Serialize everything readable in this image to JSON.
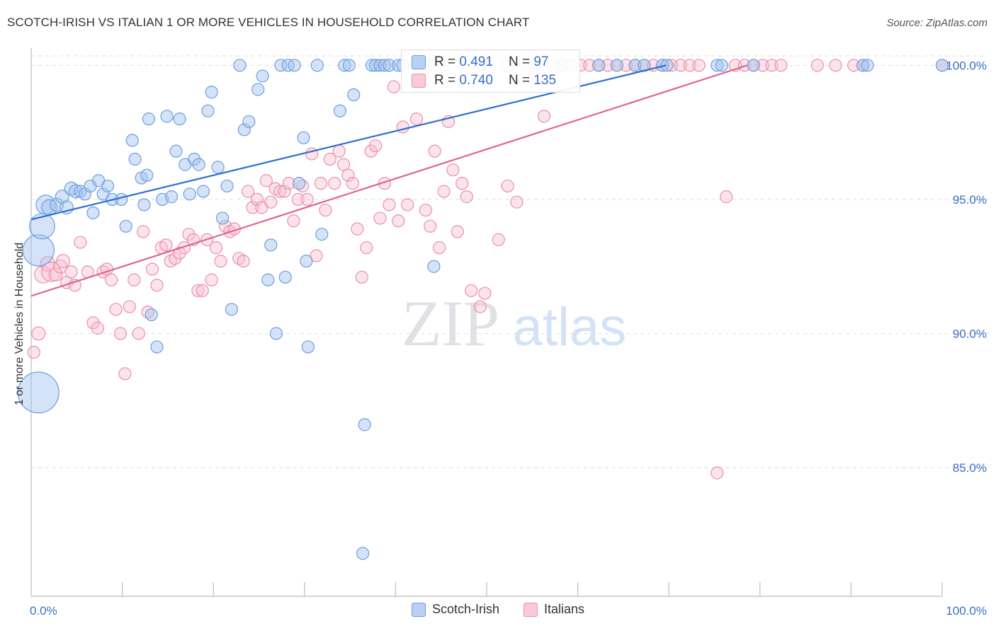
{
  "title": "SCOTCH-IRISH VS ITALIAN 1 OR MORE VEHICLES IN HOUSEHOLD CORRELATION CHART",
  "source": "Source: ZipAtlas.com",
  "watermark": {
    "zip": "ZIP",
    "atlas": "atlas"
  },
  "colors": {
    "scotch_irish": "#6f9ee0",
    "italians": "#ea8fac",
    "blue_line": "#2d6fcf",
    "pink_line": "#e0638f",
    "tick_label": "#3a6fc4"
  },
  "legend": {
    "scotch_irish": {
      "r_label": "R =",
      "r_value": "0.491",
      "n_label": "N =",
      "n_value": "97"
    },
    "italians": {
      "r_label": "R =",
      "r_value": "0.740",
      "n_label": "N =",
      "n_value": "135"
    }
  },
  "bottom_legend": {
    "scotch_irish": "Scotch-Irish",
    "italians": "Italians"
  },
  "chart_data": {
    "type": "scatter",
    "xlabel": "",
    "ylabel": "1 or more Vehicles in Household",
    "xlim": [
      0,
      100
    ],
    "ylim": [
      80.2,
      100.8
    ],
    "x_tick_labels": [
      "0.0%",
      "100.0%"
    ],
    "y_ticks": [
      85,
      90,
      95,
      100
    ],
    "y_tick_labels": [
      "85.0%",
      "90.0%",
      "95.0%",
      "100.0%"
    ],
    "grid": true,
    "legend_position": "top-center",
    "series": [
      {
        "name": "Scotch-Irish",
        "trend": {
          "x": [
            0,
            69.7
          ],
          "y": [
            94.25,
            100.0
          ]
        },
        "points": [
          [
            0.8,
            87.8,
            3.4
          ],
          [
            0.8,
            93.1,
            2.6
          ],
          [
            1.2,
            94.0,
            2.1
          ],
          [
            1.6,
            94.8,
            1.6
          ],
          [
            2.0,
            94.7,
            1.3
          ],
          [
            2.8,
            94.8,
            1.1
          ],
          [
            3.4,
            95.1,
            1.1
          ],
          [
            3.9,
            94.7,
            1.1
          ],
          [
            4.4,
            95.4,
            1.1
          ],
          [
            4.9,
            95.3,
            1.1
          ],
          [
            5.4,
            95.3,
            1.0
          ],
          [
            5.9,
            95.2,
            1.0
          ],
          [
            6.5,
            95.5,
            1.0
          ],
          [
            6.8,
            94.5,
            1.0
          ],
          [
            7.4,
            95.7,
            1.0
          ],
          [
            7.9,
            95.2,
            1.0
          ],
          [
            8.4,
            95.5,
            1.0
          ],
          [
            8.9,
            95.0,
            1.0
          ],
          [
            9.9,
            95.0,
            1.0
          ],
          [
            10.4,
            94.0,
            1.0
          ],
          [
            11.1,
            97.2,
            1.0
          ],
          [
            11.4,
            96.5,
            1.0
          ],
          [
            12.1,
            95.8,
            1.0
          ],
          [
            12.4,
            94.8,
            1.0
          ],
          [
            12.7,
            95.9,
            1.0
          ],
          [
            12.9,
            98.0,
            1.0
          ],
          [
            13.2,
            90.7,
            1.0
          ],
          [
            13.8,
            89.5,
            1.0
          ],
          [
            14.4,
            95.0,
            1.0
          ],
          [
            14.9,
            98.1,
            1.0
          ],
          [
            15.4,
            95.1,
            1.0
          ],
          [
            15.9,
            96.8,
            1.0
          ],
          [
            16.3,
            98.0,
            1.0
          ],
          [
            16.9,
            96.3,
            1.0
          ],
          [
            17.4,
            95.2,
            1.0
          ],
          [
            17.9,
            96.5,
            1.0
          ],
          [
            18.4,
            96.3,
            1.0
          ],
          [
            18.9,
            95.3,
            1.0
          ],
          [
            19.4,
            98.3,
            1.0
          ],
          [
            19.8,
            99.0,
            1.0
          ],
          [
            20.5,
            96.2,
            1.0
          ],
          [
            21.0,
            94.3,
            1.0
          ],
          [
            21.5,
            95.5,
            1.0
          ],
          [
            22.0,
            90.9,
            1.0
          ],
          [
            22.9,
            100.0,
            1.0
          ],
          [
            23.4,
            97.6,
            1.0
          ],
          [
            23.9,
            97.9,
            1.0
          ],
          [
            24.9,
            99.1,
            1.0
          ],
          [
            25.4,
            99.6,
            1.0
          ],
          [
            26.0,
            92.0,
            1.0
          ],
          [
            26.3,
            93.3,
            1.0
          ],
          [
            26.9,
            90.0,
            1.0
          ],
          [
            27.4,
            100.0,
            1.0
          ],
          [
            27.9,
            92.1,
            1.0
          ],
          [
            28.2,
            100.0,
            1.0
          ],
          [
            28.9,
            100.0,
            1.0
          ],
          [
            29.4,
            95.6,
            1.0
          ],
          [
            29.9,
            97.3,
            1.0
          ],
          [
            30.2,
            92.7,
            1.0
          ],
          [
            30.4,
            89.5,
            1.0
          ],
          [
            31.4,
            100.0,
            1.0
          ],
          [
            31.9,
            93.7,
            1.0
          ],
          [
            33.9,
            98.3,
            1.0
          ],
          [
            34.4,
            100.0,
            1.0
          ],
          [
            34.9,
            100.0,
            1.0
          ],
          [
            35.4,
            98.9,
            1.0
          ],
          [
            36.4,
            81.8,
            1.0
          ],
          [
            36.6,
            86.6,
            1.0
          ],
          [
            37.4,
            100.0,
            1.0
          ],
          [
            37.8,
            100.0,
            1.0
          ],
          [
            38.3,
            100.0,
            1.0
          ],
          [
            38.8,
            100.0,
            1.0
          ],
          [
            39.3,
            100.0,
            1.0
          ],
          [
            40.3,
            100.0,
            1.0
          ],
          [
            40.8,
            100.0,
            1.0
          ],
          [
            42.3,
            100.0,
            1.0
          ],
          [
            43.2,
            100.0,
            1.0
          ],
          [
            43.8,
            100.0,
            1.0
          ],
          [
            44.2,
            92.5,
            1.0
          ],
          [
            45.3,
            100.0,
            1.0
          ],
          [
            49.3,
            100.0,
            1.0
          ],
          [
            52.3,
            100.0,
            1.0
          ],
          [
            55.3,
            100.0,
            1.0
          ],
          [
            58.3,
            100.0,
            1.0
          ],
          [
            59.3,
            100.0,
            1.0
          ],
          [
            62.3,
            100.0,
            1.0
          ],
          [
            64.3,
            100.0,
            1.0
          ],
          [
            66.3,
            100.0,
            1.0
          ],
          [
            67.3,
            100.0,
            1.0
          ],
          [
            69.3,
            100.0,
            1.0
          ],
          [
            69.8,
            100.0,
            1.0
          ],
          [
            75.3,
            100.0,
            1.0
          ],
          [
            75.8,
            100.0,
            1.0
          ],
          [
            79.3,
            100.0,
            1.0
          ],
          [
            91.3,
            100.0,
            1.0
          ],
          [
            91.8,
            100.0,
            1.0
          ],
          [
            100.0,
            100.0,
            1.0
          ]
        ]
      },
      {
        "name": "Italians",
        "trend": {
          "x": [
            0,
            78.6
          ],
          "y": [
            91.4,
            100.0
          ]
        },
        "points": [
          [
            0.3,
            89.3,
            1.0
          ],
          [
            0.8,
            90.0,
            1.1
          ],
          [
            1.3,
            92.2,
            1.4
          ],
          [
            1.8,
            92.6,
            1.2
          ],
          [
            2.2,
            92.3,
            1.6
          ],
          [
            2.7,
            92.2,
            1.1
          ],
          [
            3.2,
            92.5,
            1.1
          ],
          [
            3.5,
            92.7,
            1.1
          ],
          [
            3.9,
            91.9,
            1.0
          ],
          [
            4.4,
            92.3,
            1.0
          ],
          [
            4.8,
            91.8,
            1.0
          ],
          [
            5.4,
            93.4,
            1.0
          ],
          [
            6.2,
            92.3,
            1.0
          ],
          [
            6.8,
            90.4,
            1.0
          ],
          [
            7.3,
            90.2,
            1.0
          ],
          [
            7.9,
            92.3,
            1.0
          ],
          [
            8.3,
            92.4,
            1.0
          ],
          [
            8.8,
            92.0,
            1.0
          ],
          [
            9.3,
            90.9,
            1.0
          ],
          [
            9.8,
            90.0,
            1.0
          ],
          [
            10.3,
            88.5,
            1.0
          ],
          [
            10.8,
            91.0,
            1.0
          ],
          [
            11.3,
            92.0,
            1.0
          ],
          [
            11.8,
            90.0,
            1.0
          ],
          [
            12.3,
            93.8,
            1.0
          ],
          [
            12.8,
            90.8,
            1.0
          ],
          [
            13.3,
            92.4,
            1.0
          ],
          [
            13.8,
            91.8,
            1.0
          ],
          [
            14.3,
            93.2,
            1.0
          ],
          [
            14.8,
            93.3,
            1.0
          ],
          [
            15.3,
            92.7,
            1.0
          ],
          [
            15.8,
            92.8,
            1.0
          ],
          [
            16.3,
            93.0,
            1.0
          ],
          [
            16.8,
            93.2,
            1.0
          ],
          [
            17.3,
            93.7,
            1.0
          ],
          [
            17.8,
            93.5,
            1.0
          ],
          [
            18.3,
            91.6,
            1.0
          ],
          [
            18.8,
            91.6,
            1.0
          ],
          [
            19.3,
            93.5,
            1.0
          ],
          [
            19.8,
            92.0,
            1.0
          ],
          [
            20.3,
            93.2,
            1.0
          ],
          [
            20.8,
            92.7,
            1.0
          ],
          [
            21.3,
            94.0,
            1.0
          ],
          [
            21.8,
            93.8,
            1.0
          ],
          [
            22.3,
            93.9,
            1.0
          ],
          [
            22.8,
            92.8,
            1.0
          ],
          [
            23.3,
            92.7,
            1.0
          ],
          [
            23.8,
            95.3,
            1.0
          ],
          [
            24.3,
            94.7,
            1.0
          ],
          [
            24.8,
            95.0,
            1.0
          ],
          [
            25.3,
            94.7,
            1.0
          ],
          [
            25.8,
            95.7,
            1.0
          ],
          [
            26.3,
            94.9,
            1.0
          ],
          [
            26.8,
            95.4,
            1.0
          ],
          [
            27.3,
            95.3,
            1.0
          ],
          [
            27.8,
            95.3,
            1.0
          ],
          [
            28.3,
            95.6,
            1.0
          ],
          [
            28.8,
            94.2,
            1.0
          ],
          [
            29.3,
            95.0,
            1.0
          ],
          [
            29.8,
            95.5,
            1.0
          ],
          [
            30.3,
            95.0,
            1.0
          ],
          [
            30.8,
            96.7,
            1.0
          ],
          [
            31.3,
            92.9,
            1.0
          ],
          [
            31.8,
            95.6,
            1.0
          ],
          [
            32.3,
            94.6,
            1.0
          ],
          [
            32.8,
            96.5,
            1.0
          ],
          [
            33.3,
            95.6,
            1.0
          ],
          [
            33.8,
            96.8,
            1.0
          ],
          [
            34.3,
            96.3,
            1.0
          ],
          [
            34.8,
            95.9,
            1.0
          ],
          [
            35.3,
            95.6,
            1.0
          ],
          [
            35.8,
            93.9,
            1.0
          ],
          [
            36.3,
            92.1,
            1.0
          ],
          [
            36.8,
            93.2,
            1.0
          ],
          [
            37.3,
            96.8,
            1.0
          ],
          [
            37.8,
            97.0,
            1.0
          ],
          [
            38.3,
            94.3,
            1.0
          ],
          [
            38.8,
            95.6,
            1.0
          ],
          [
            39.3,
            94.8,
            1.0
          ],
          [
            39.8,
            99.2,
            1.0
          ],
          [
            40.3,
            94.2,
            1.0
          ],
          [
            40.8,
            97.7,
            1.0
          ],
          [
            41.3,
            94.8,
            1.0
          ],
          [
            42.3,
            98.0,
            1.0
          ],
          [
            42.8,
            99.3,
            1.0
          ],
          [
            43.3,
            94.6,
            1.0
          ],
          [
            43.8,
            94.0,
            1.0
          ],
          [
            44.3,
            96.8,
            1.0
          ],
          [
            44.8,
            93.2,
            1.0
          ],
          [
            45.3,
            95.3,
            1.0
          ],
          [
            45.8,
            97.9,
            1.0
          ],
          [
            46.3,
            96.1,
            1.0
          ],
          [
            46.8,
            93.8,
            1.0
          ],
          [
            47.3,
            95.6,
            1.0
          ],
          [
            47.8,
            95.1,
            1.0
          ],
          [
            48.3,
            91.6,
            1.0
          ],
          [
            48.8,
            100.0,
            1.0
          ],
          [
            49.3,
            91.0,
            1.0
          ],
          [
            49.8,
            91.5,
            1.0
          ],
          [
            50.3,
            100.0,
            1.0
          ],
          [
            51.3,
            93.5,
            1.0
          ],
          [
            52.3,
            95.5,
            1.0
          ],
          [
            53.3,
            94.9,
            1.0
          ],
          [
            54.3,
            100.0,
            1.0
          ],
          [
            55.3,
            100.0,
            1.0
          ],
          [
            56.3,
            98.1,
            1.0
          ],
          [
            57.3,
            100.0,
            1.0
          ],
          [
            58.3,
            100.0,
            1.0
          ],
          [
            60.3,
            100.0,
            1.0
          ],
          [
            61.3,
            100.0,
            1.0
          ],
          [
            62.3,
            100.0,
            1.0
          ],
          [
            63.3,
            100.0,
            1.0
          ],
          [
            64.3,
            100.0,
            1.0
          ],
          [
            65.3,
            100.0,
            1.0
          ],
          [
            66.3,
            100.0,
            1.0
          ],
          [
            67.3,
            100.0,
            1.0
          ],
          [
            68.3,
            100.0,
            1.0
          ],
          [
            69.3,
            100.0,
            1.0
          ],
          [
            70.3,
            100.0,
            1.0
          ],
          [
            71.3,
            100.0,
            1.0
          ],
          [
            72.3,
            100.0,
            1.0
          ],
          [
            73.3,
            100.0,
            1.0
          ],
          [
            75.3,
            84.8,
            1.0
          ],
          [
            76.3,
            95.1,
            1.0
          ],
          [
            77.3,
            100.0,
            1.0
          ],
          [
            78.3,
            100.0,
            1.0
          ],
          [
            79.3,
            100.0,
            1.0
          ],
          [
            80.3,
            100.0,
            1.0
          ],
          [
            81.3,
            100.0,
            1.0
          ],
          [
            82.3,
            100.0,
            1.0
          ],
          [
            86.3,
            100.0,
            1.0
          ],
          [
            88.3,
            100.0,
            1.0
          ],
          [
            90.3,
            100.0,
            1.0
          ],
          [
            91.3,
            100.0,
            1.0
          ],
          [
            100.0,
            100.0,
            1.0
          ]
        ]
      }
    ]
  }
}
